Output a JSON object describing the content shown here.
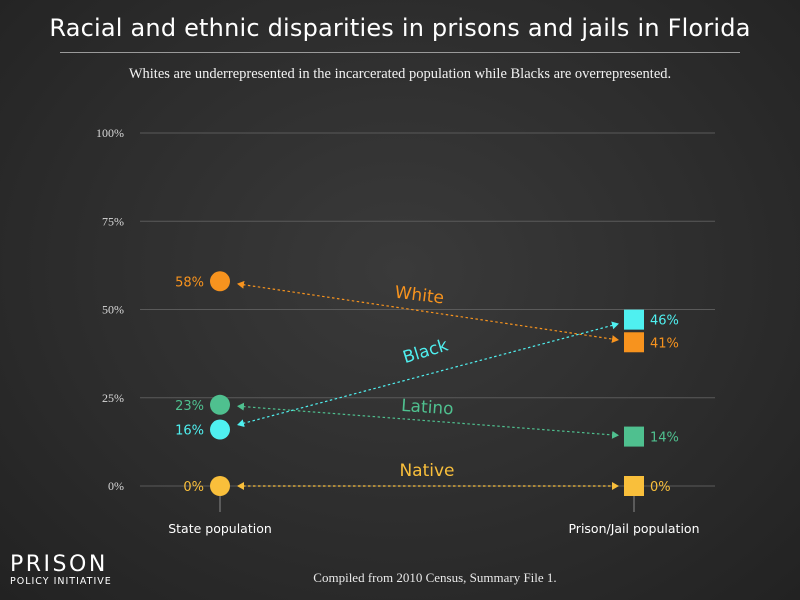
{
  "chart_data": {
    "type": "slope",
    "title": "Racial and ethnic disparities in prisons and jails in Florida",
    "subtitle": "Whites are underrepresented in the incarcerated population while Blacks are overrepresented.",
    "categories": [
      "State population",
      "Prison/Jail population"
    ],
    "ylim": [
      0,
      100
    ],
    "yticks": [
      0,
      25,
      50,
      75,
      100
    ],
    "ytick_labels": [
      "0%",
      "25%",
      "50%",
      "75%",
      "100%"
    ],
    "grid": true,
    "series": [
      {
        "name": "White",
        "values": [
          58,
          41
        ],
        "value_labels": [
          "58%",
          "41%"
        ],
        "color": "#f7931e"
      },
      {
        "name": "Black",
        "values": [
          16,
          46
        ],
        "value_labels": [
          "16%",
          "46%"
        ],
        "color": "#4ff0f0"
      },
      {
        "name": "Latino",
        "values": [
          23,
          14
        ],
        "value_labels": [
          "23%",
          "14%"
        ],
        "color": "#4fc08f"
      },
      {
        "name": "Native",
        "values": [
          0,
          0
        ],
        "value_labels": [
          "0%",
          "0%"
        ],
        "color": "#f9bf3b"
      }
    ]
  },
  "footer": {
    "source": "Compiled from 2010 Census, Summary File 1."
  },
  "logo": {
    "main": "PRISON",
    "sub": "POLICY INITIATIVE"
  }
}
